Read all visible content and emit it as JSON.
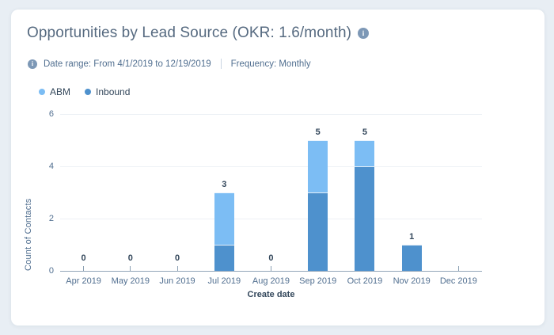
{
  "card": {
    "title": "Opportunities by Lead Source (OKR: 1.6/month)",
    "meta": {
      "date_range": "Date range: From 4/1/2019 to 12/19/2019",
      "frequency": "Frequency: Monthly"
    },
    "info_glyph": "i"
  },
  "colors": {
    "abm": "#7cbdf4",
    "inbound": "#4e91cd",
    "title_text": "#566a80",
    "muted_text": "#516f90",
    "dark_text": "#33475b",
    "axis": "#92a6b8",
    "grid": "#edf1f5",
    "page_bg": "#e8eef4",
    "info_icon": "#7d98b6"
  },
  "chart_data": {
    "type": "bar",
    "stacked": true,
    "title": "Opportunities by Lead Source (OKR: 1.6/month)",
    "xlabel": "Create date",
    "ylabel": "Count of Contacts",
    "categories": [
      "Apr 2019",
      "May 2019",
      "Jun 2019",
      "Jul 2019",
      "Aug 2019",
      "Sep 2019",
      "Oct 2019",
      "Nov 2019",
      "Dec 2019"
    ],
    "series": [
      {
        "name": "ABM",
        "color": "#7cbdf4",
        "values": [
          0,
          0,
          0,
          2,
          0,
          2,
          1,
          0,
          0
        ]
      },
      {
        "name": "Inbound",
        "color": "#4e91cd",
        "values": [
          0,
          0,
          0,
          1,
          0,
          3,
          4,
          1,
          0
        ]
      }
    ],
    "totals": [
      0,
      0,
      0,
      3,
      0,
      5,
      5,
      1,
      0
    ],
    "total_labels": [
      "0",
      "0",
      "0",
      "3",
      "0",
      "5",
      "5",
      "1",
      ""
    ],
    "yticks": [
      0,
      2,
      4,
      6
    ],
    "ylim": [
      0,
      6
    ],
    "grid": true,
    "legend_position": "top-left"
  }
}
